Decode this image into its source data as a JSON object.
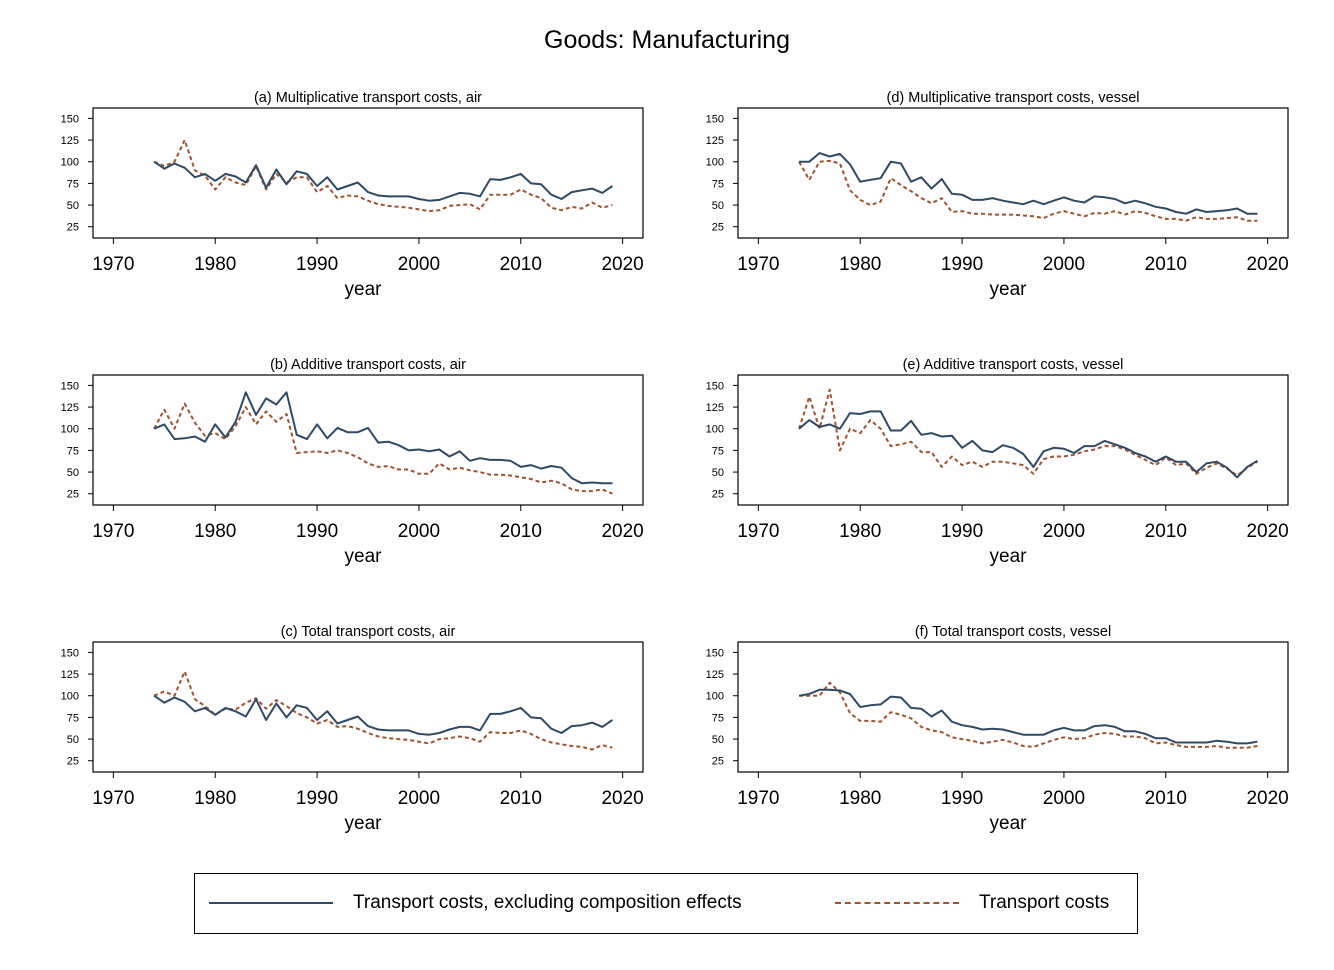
{
  "figure": {
    "title": "Goods: Manufacturing",
    "colors": {
      "composition": "#2e4a66",
      "transport": "#a0522d"
    }
  },
  "legend": {
    "items": [
      {
        "key": "composition",
        "label": "Transport costs, excluding composition effects",
        "style": "solid"
      },
      {
        "key": "transport",
        "label": "Transport costs",
        "style": "dashed"
      }
    ]
  },
  "chart_data": [
    {
      "type": "line",
      "title": "(a) Multiplicative transport costs, air",
      "xlabel": "year",
      "ylabel": "",
      "xlim": [
        1968,
        2022
      ],
      "ylim": [
        12,
        162
      ],
      "xticks": [
        1970,
        1980,
        1990,
        2000,
        2010,
        2020
      ],
      "yticks": [
        25,
        50,
        75,
        100,
        125,
        150
      ],
      "x": [
        1974,
        1975,
        1976,
        1977,
        1978,
        1979,
        1980,
        1981,
        1982,
        1983,
        1984,
        1985,
        1986,
        1987,
        1988,
        1989,
        1990,
        1991,
        1992,
        1993,
        1994,
        1995,
        1996,
        1997,
        1998,
        1999,
        2000,
        2001,
        2002,
        2003,
        2004,
        2005,
        2006,
        2007,
        2008,
        2009,
        2010,
        2011,
        2012,
        2013,
        2014,
        2015,
        2016,
        2017,
        2018,
        2019
      ],
      "series": [
        {
          "name": "Transport costs, excluding composition effects",
          "key": "composition",
          "values": [
            100,
            92,
            98,
            93,
            82,
            86,
            78,
            86,
            83,
            76,
            96,
            70,
            91,
            74,
            89,
            86,
            72,
            82,
            68,
            72,
            76,
            65,
            61,
            60,
            60,
            60,
            57,
            55,
            56,
            60,
            64,
            63,
            60,
            80,
            79,
            82,
            86,
            75,
            74,
            62,
            57,
            65,
            67,
            69,
            64,
            72
          ]
        },
        {
          "name": "Transport costs",
          "key": "transport",
          "values": [
            100,
            95,
            100,
            125,
            90,
            84,
            68,
            82,
            76,
            73,
            95,
            68,
            86,
            76,
            82,
            82,
            65,
            72,
            58,
            61,
            60,
            55,
            51,
            49,
            48,
            47,
            45,
            43,
            44,
            49,
            50,
            51,
            45,
            62,
            62,
            62,
            68,
            62,
            58,
            47,
            44,
            48,
            46,
            53,
            47,
            50
          ]
        }
      ]
    },
    {
      "type": "line",
      "title": "(b) Additive transport costs, air",
      "xlabel": "year",
      "ylabel": "",
      "xlim": [
        1968,
        2022
      ],
      "ylim": [
        12,
        162
      ],
      "xticks": [
        1970,
        1980,
        1990,
        2000,
        2010,
        2020
      ],
      "yticks": [
        25,
        50,
        75,
        100,
        125,
        150
      ],
      "x": [
        1974,
        1975,
        1976,
        1977,
        1978,
        1979,
        1980,
        1981,
        1982,
        1983,
        1984,
        1985,
        1986,
        1987,
        1988,
        1989,
        1990,
        1991,
        1992,
        1993,
        1994,
        1995,
        1996,
        1997,
        1998,
        1999,
        2000,
        2001,
        2002,
        2003,
        2004,
        2005,
        2006,
        2007,
        2008,
        2009,
        2010,
        2011,
        2012,
        2013,
        2014,
        2015,
        2016,
        2017,
        2018,
        2019
      ],
      "series": [
        {
          "name": "Transport costs, excluding composition effects",
          "key": "composition",
          "values": [
            100,
            105,
            88,
            89,
            91,
            85,
            105,
            90,
            108,
            142,
            116,
            135,
            128,
            142,
            93,
            88,
            105,
            89,
            101,
            96,
            96,
            101,
            84,
            85,
            81,
            75,
            76,
            74,
            76,
            68,
            74,
            63,
            66,
            64,
            64,
            63,
            56,
            58,
            54,
            57,
            55,
            43,
            37,
            38,
            37,
            37
          ]
        },
        {
          "name": "Transport costs",
          "key": "transport",
          "values": [
            100,
            122,
            100,
            129,
            107,
            92,
            95,
            88,
            103,
            125,
            105,
            120,
            108,
            117,
            72,
            73,
            74,
            72,
            75,
            72,
            67,
            60,
            56,
            57,
            53,
            53,
            48,
            48,
            60,
            53,
            55,
            52,
            50,
            47,
            47,
            46,
            44,
            42,
            38,
            40,
            37,
            30,
            28,
            28,
            30,
            25
          ]
        }
      ]
    },
    {
      "type": "line",
      "title": "(c) Total transport costs, air",
      "xlabel": "year",
      "ylabel": "",
      "xlim": [
        1968,
        2022
      ],
      "ylim": [
        12,
        162
      ],
      "xticks": [
        1970,
        1980,
        1990,
        2000,
        2010,
        2020
      ],
      "yticks": [
        25,
        50,
        75,
        100,
        125,
        150
      ],
      "x": [
        1974,
        1975,
        1976,
        1977,
        1978,
        1979,
        1980,
        1981,
        1982,
        1983,
        1984,
        1985,
        1986,
        1987,
        1988,
        1989,
        1990,
        1991,
        1992,
        1993,
        1994,
        1995,
        1996,
        1997,
        1998,
        1999,
        2000,
        2001,
        2002,
        2003,
        2004,
        2005,
        2006,
        2007,
        2008,
        2009,
        2010,
        2011,
        2012,
        2013,
        2014,
        2015,
        2016,
        2017,
        2018,
        2019
      ],
      "series": [
        {
          "name": "Transport costs, excluding composition effects",
          "key": "composition",
          "values": [
            100,
            92,
            98,
            93,
            82,
            86,
            78,
            86,
            82,
            76,
            96,
            72,
            91,
            75,
            89,
            86,
            72,
            82,
            68,
            72,
            76,
            65,
            61,
            60,
            60,
            60,
            56,
            55,
            57,
            61,
            64,
            64,
            60,
            79,
            79,
            82,
            86,
            75,
            74,
            62,
            57,
            65,
            66,
            69,
            64,
            72
          ]
        },
        {
          "name": "Transport costs",
          "key": "transport",
          "values": [
            100,
            105,
            100,
            128,
            96,
            88,
            78,
            85,
            84,
            92,
            97,
            85,
            95,
            88,
            80,
            75,
            68,
            72,
            64,
            65,
            62,
            57,
            53,
            51,
            50,
            49,
            47,
            45,
            50,
            51,
            53,
            51,
            47,
            58,
            57,
            57,
            60,
            56,
            50,
            46,
            44,
            42,
            41,
            38,
            43,
            40
          ]
        }
      ]
    },
    {
      "type": "line",
      "title": "(d) Multiplicative transport costs, vessel",
      "xlabel": "year",
      "ylabel": "",
      "xlim": [
        1968,
        2022
      ],
      "ylim": [
        12,
        162
      ],
      "xticks": [
        1970,
        1980,
        1990,
        2000,
        2010,
        2020
      ],
      "yticks": [
        25,
        50,
        75,
        100,
        125,
        150
      ],
      "x": [
        1974,
        1975,
        1976,
        1977,
        1978,
        1979,
        1980,
        1981,
        1982,
        1983,
        1984,
        1985,
        1986,
        1987,
        1988,
        1989,
        1990,
        1991,
        1992,
        1993,
        1994,
        1995,
        1996,
        1997,
        1998,
        1999,
        2000,
        2001,
        2002,
        2003,
        2004,
        2005,
        2006,
        2007,
        2008,
        2009,
        2010,
        2011,
        2012,
        2013,
        2014,
        2015,
        2016,
        2017,
        2018,
        2019
      ],
      "series": [
        {
          "name": "Transport costs, excluding composition effects",
          "key": "composition",
          "values": [
            100,
            100,
            110,
            106,
            109,
            97,
            77,
            79,
            81,
            100,
            98,
            77,
            82,
            69,
            80,
            63,
            62,
            56,
            56,
            58,
            55,
            53,
            51,
            55,
            51,
            55,
            59,
            55,
            53,
            60,
            59,
            57,
            52,
            55,
            52,
            48,
            46,
            42,
            40,
            45,
            42,
            43,
            44,
            46,
            40,
            40
          ]
        },
        {
          "name": "Transport costs",
          "key": "transport",
          "values": [
            100,
            79,
            100,
            101,
            98,
            67,
            56,
            50,
            54,
            81,
            73,
            66,
            58,
            52,
            58,
            42,
            43,
            40,
            40,
            39,
            39,
            39,
            38,
            37,
            35,
            40,
            43,
            40,
            37,
            41,
            40,
            43,
            39,
            43,
            41,
            37,
            34,
            34,
            32,
            36,
            34,
            34,
            35,
            36,
            32,
            32
          ]
        }
      ]
    },
    {
      "type": "line",
      "title": "(e) Additive transport costs, vessel",
      "xlabel": "year",
      "ylabel": "",
      "xlim": [
        1968,
        2022
      ],
      "ylim": [
        12,
        162
      ],
      "xticks": [
        1970,
        1980,
        1990,
        2000,
        2010,
        2020
      ],
      "yticks": [
        25,
        50,
        75,
        100,
        125,
        150
      ],
      "x": [
        1974,
        1975,
        1976,
        1977,
        1978,
        1979,
        1980,
        1981,
        1982,
        1983,
        1984,
        1985,
        1986,
        1987,
        1988,
        1989,
        1990,
        1991,
        1992,
        1993,
        1994,
        1995,
        1996,
        1997,
        1998,
        1999,
        2000,
        2001,
        2002,
        2003,
        2004,
        2005,
        2006,
        2007,
        2008,
        2009,
        2010,
        2011,
        2012,
        2013,
        2014,
        2015,
        2016,
        2017,
        2018,
        2019
      ],
      "series": [
        {
          "name": "Transport costs, excluding composition effects",
          "key": "composition",
          "values": [
            100,
            110,
            102,
            105,
            100,
            118,
            117,
            120,
            120,
            98,
            98,
            109,
            93,
            95,
            91,
            92,
            78,
            86,
            75,
            73,
            81,
            78,
            71,
            56,
            74,
            78,
            77,
            72,
            80,
            80,
            86,
            82,
            78,
            72,
            68,
            62,
            68,
            62,
            62,
            50,
            60,
            62,
            55,
            44,
            56,
            63
          ]
        },
        {
          "name": "Transport costs",
          "key": "transport",
          "values": [
            100,
            137,
            100,
            145,
            75,
            100,
            95,
            110,
            100,
            80,
            82,
            85,
            73,
            73,
            56,
            68,
            58,
            62,
            56,
            62,
            62,
            60,
            58,
            48,
            65,
            68,
            68,
            70,
            74,
            76,
            80,
            80,
            76,
            70,
            64,
            58,
            67,
            58,
            60,
            48,
            55,
            60,
            54,
            46,
            55,
            62
          ]
        }
      ]
    },
    {
      "type": "line",
      "title": "(f) Total transport costs, vessel",
      "xlabel": "year",
      "ylabel": "",
      "xlim": [
        1968,
        2022
      ],
      "ylim": [
        12,
        162
      ],
      "xticks": [
        1970,
        1980,
        1990,
        2000,
        2010,
        2020
      ],
      "yticks": [
        25,
        50,
        75,
        100,
        125,
        150
      ],
      "x": [
        1974,
        1975,
        1976,
        1977,
        1978,
        1979,
        1980,
        1981,
        1982,
        1983,
        1984,
        1985,
        1986,
        1987,
        1988,
        1989,
        1990,
        1991,
        1992,
        1993,
        1994,
        1995,
        1996,
        1997,
        1998,
        1999,
        2000,
        2001,
        2002,
        2003,
        2004,
        2005,
        2006,
        2007,
        2008,
        2009,
        2010,
        2011,
        2012,
        2013,
        2014,
        2015,
        2016,
        2017,
        2018,
        2019
      ],
      "series": [
        {
          "name": "Transport costs, excluding composition effects",
          "key": "composition",
          "values": [
            100,
            102,
            107,
            107,
            106,
            102,
            87,
            89,
            90,
            99,
            98,
            86,
            85,
            76,
            83,
            70,
            66,
            64,
            61,
            62,
            61,
            58,
            55,
            55,
            55,
            60,
            63,
            60,
            60,
            65,
            66,
            64,
            59,
            59,
            56,
            51,
            51,
            46,
            46,
            46,
            46,
            48,
            47,
            45,
            45,
            47
          ]
        },
        {
          "name": "Transport costs",
          "key": "transport",
          "values": [
            100,
            100,
            100,
            115,
            104,
            80,
            71,
            71,
            70,
            81,
            78,
            74,
            64,
            60,
            58,
            52,
            50,
            48,
            45,
            47,
            49,
            46,
            42,
            41,
            45,
            49,
            52,
            50,
            51,
            55,
            57,
            56,
            53,
            53,
            51,
            45,
            46,
            43,
            41,
            41,
            41,
            42,
            40,
            40,
            40,
            42
          ]
        }
      ]
    }
  ]
}
